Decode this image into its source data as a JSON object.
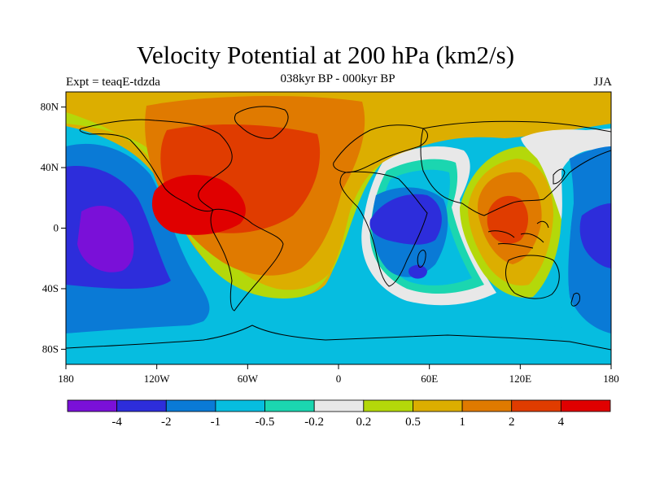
{
  "title": "Velocity Potential at 200 hPa (km2/s)",
  "subtitle": "038kyr BP - 000kyr BP",
  "left_label": "Expt = teaqE-tdzda",
  "right_label": "JJA",
  "map": {
    "projection": "cylindrical-equidistant",
    "lon_range": [
      -180,
      180
    ],
    "lat_range": [
      -90,
      90
    ],
    "lat_ticks": [
      {
        "value": 80,
        "label": "80N"
      },
      {
        "value": 40,
        "label": "40N"
      },
      {
        "value": 0,
        "label": "0"
      },
      {
        "value": -40,
        "label": "40S"
      },
      {
        "value": -80,
        "label": "80S"
      }
    ],
    "lon_ticks": [
      {
        "value": -180,
        "label": "180"
      },
      {
        "value": -120,
        "label": "120W"
      },
      {
        "value": -60,
        "label": "60W"
      },
      {
        "value": 0,
        "label": "0"
      },
      {
        "value": 60,
        "label": "60E"
      },
      {
        "value": 120,
        "label": "120E"
      },
      {
        "value": 180,
        "label": "180"
      }
    ]
  },
  "colorbar": {
    "colors": [
      "#7a10d8",
      "#2d2ddb",
      "#0a7ad6",
      "#06bde0",
      "#1bd6b0",
      "#e8e8e8",
      "#b4d80a",
      "#dcae00",
      "#e07a00",
      "#e03c00",
      "#e00000"
    ],
    "labels": [
      "-4",
      "-2",
      "-1",
      "-0.5",
      "-0.2",
      "0.2",
      "0.5",
      "1",
      "2",
      "4"
    ]
  }
}
